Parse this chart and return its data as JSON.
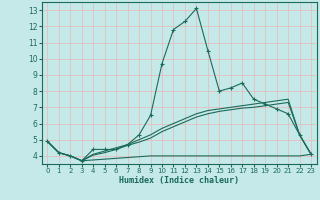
{
  "xlabel": "Humidex (Indice chaleur)",
  "bg_color": "#c5e8e8",
  "grid_color": "#e8b8b8",
  "line_color": "#1a6b5a",
  "xlim": [
    -0.5,
    23.5
  ],
  "ylim": [
    3.5,
    13.5
  ],
  "xticks": [
    0,
    1,
    2,
    3,
    4,
    5,
    6,
    7,
    8,
    9,
    10,
    11,
    12,
    13,
    14,
    15,
    16,
    17,
    18,
    19,
    20,
    21,
    22,
    23
  ],
  "yticks": [
    4,
    5,
    6,
    7,
    8,
    9,
    10,
    11,
    12,
    13
  ],
  "line1_x": [
    0,
    1,
    2,
    3,
    4,
    5,
    6,
    7,
    8,
    9,
    10,
    11,
    12,
    13,
    14,
    15,
    16,
    17,
    18,
    19,
    20,
    21,
    22,
    23
  ],
  "line1_y": [
    4.9,
    4.2,
    4.0,
    3.7,
    4.4,
    4.4,
    4.4,
    4.7,
    5.3,
    6.5,
    9.7,
    11.8,
    12.3,
    13.1,
    10.5,
    8.0,
    8.2,
    8.5,
    7.5,
    7.2,
    6.9,
    6.6,
    5.3,
    4.1
  ],
  "line2_x": [
    0,
    1,
    2,
    3,
    4,
    5,
    6,
    7,
    8,
    9,
    10,
    11,
    12,
    13,
    14,
    15,
    16,
    17,
    18,
    19,
    20,
    21,
    22,
    23
  ],
  "line2_y": [
    4.9,
    4.2,
    4.0,
    3.7,
    3.75,
    3.8,
    3.85,
    3.9,
    3.95,
    4.0,
    4.0,
    4.0,
    4.0,
    4.0,
    4.0,
    4.0,
    4.0,
    4.0,
    4.0,
    4.0,
    4.0,
    4.0,
    4.0,
    4.1
  ],
  "line3_x": [
    0,
    1,
    2,
    3,
    4,
    5,
    6,
    7,
    8,
    9,
    10,
    11,
    12,
    13,
    14,
    15,
    16,
    17,
    18,
    19,
    20,
    21,
    22,
    23
  ],
  "line3_y": [
    4.9,
    4.2,
    4.0,
    3.7,
    4.05,
    4.2,
    4.4,
    4.65,
    4.85,
    5.1,
    5.5,
    5.8,
    6.1,
    6.4,
    6.6,
    6.75,
    6.85,
    6.95,
    7.0,
    7.1,
    7.2,
    7.3,
    5.3,
    4.1
  ],
  "line4_x": [
    0,
    1,
    2,
    3,
    4,
    5,
    6,
    7,
    8,
    9,
    10,
    11,
    12,
    13,
    14,
    15,
    16,
    17,
    18,
    19,
    20,
    21,
    22,
    23
  ],
  "line4_y": [
    4.9,
    4.2,
    4.0,
    3.7,
    4.1,
    4.3,
    4.5,
    4.7,
    5.0,
    5.3,
    5.7,
    6.0,
    6.3,
    6.6,
    6.8,
    6.9,
    7.0,
    7.1,
    7.2,
    7.3,
    7.4,
    7.5,
    5.3,
    4.1
  ]
}
